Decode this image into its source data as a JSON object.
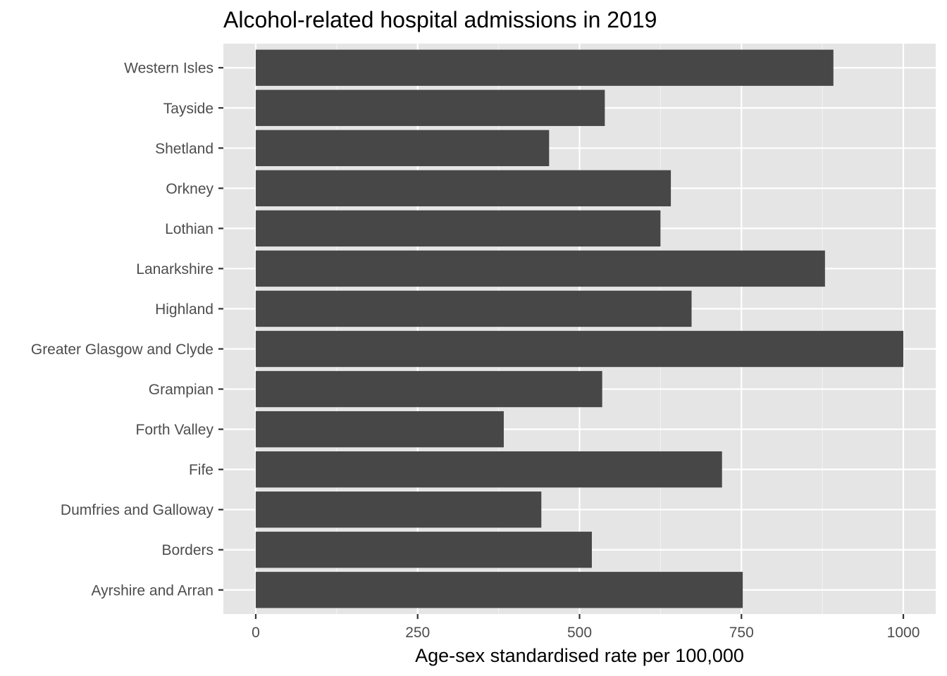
{
  "chart_data": {
    "type": "bar",
    "orientation": "horizontal",
    "title": "Alcohol-related hospital admissions in 2019",
    "xlabel": "Age-sex standardised rate per 100,000",
    "ylabel": "",
    "xlim": [
      -50,
      1050
    ],
    "x_ticks": [
      0,
      250,
      500,
      750,
      1000
    ],
    "x_tick_labels": [
      "0",
      "250",
      "500",
      "750",
      "1000"
    ],
    "grid": true,
    "legend": "none",
    "categories": [
      "Ayrshire and Arran",
      "Borders",
      "Dumfries and Galloway",
      "Fife",
      "Forth Valley",
      "Grampian",
      "Greater Glasgow and Clyde",
      "Highland",
      "Lanarkshire",
      "Lothian",
      "Orkney",
      "Shetland",
      "Tayside",
      "Western Isles"
    ],
    "values": [
      752,
      519,
      441,
      720,
      383,
      535,
      1000,
      673,
      879,
      625,
      641,
      453,
      539,
      892
    ],
    "colors": {
      "bar": "#474747",
      "panel_background": "#e5e5e5",
      "grid_major": "#ffffff",
      "grid_minor": "#f2f2f2",
      "tick_label": "#4d4d4d",
      "axis_tick": "#333333"
    }
  }
}
